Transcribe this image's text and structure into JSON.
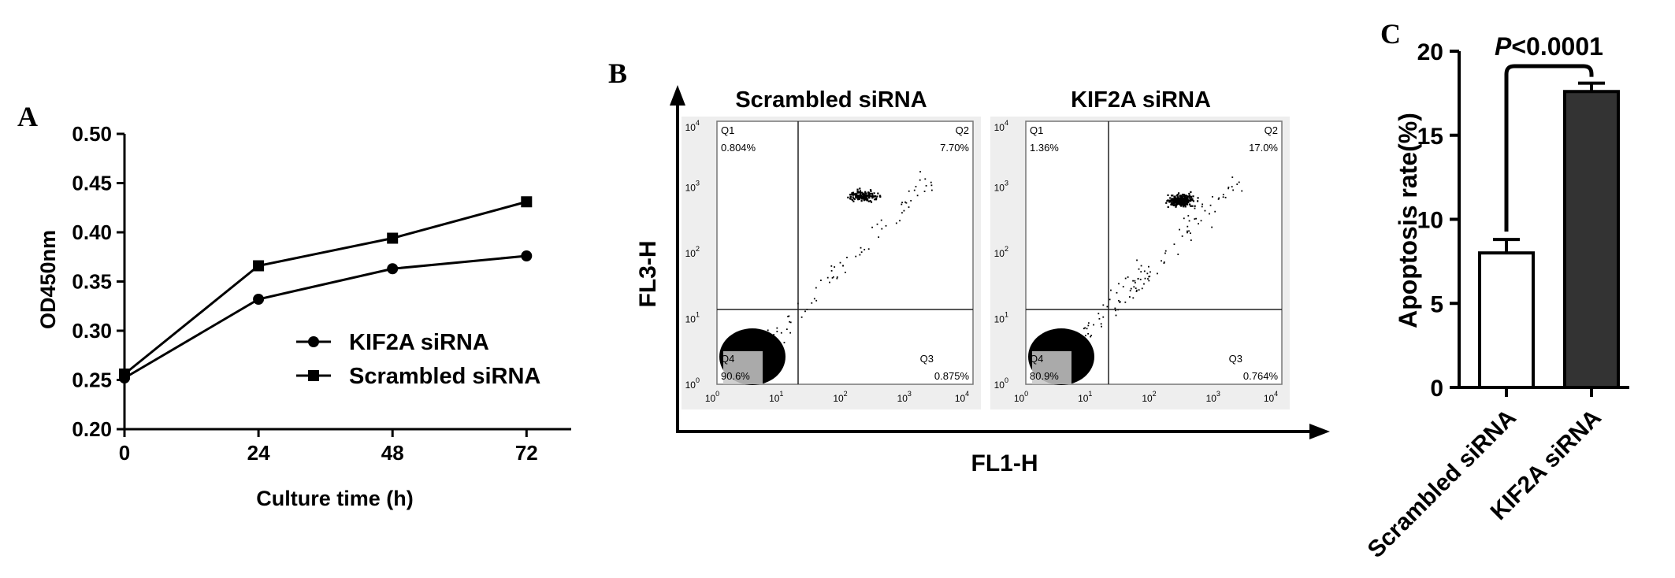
{
  "panels": {
    "a": "A",
    "b": "B",
    "c": "C"
  },
  "chart_data": [
    {
      "type": "line",
      "xlabel": "Culture time (h)",
      "ylabel": "OD450nm",
      "x": [
        0,
        24,
        48,
        72
      ],
      "x_ticks": [
        "0",
        "24",
        "48",
        "72"
      ],
      "y_ticks": [
        "0.20",
        "0.25",
        "0.30",
        "0.35",
        "0.40",
        "0.45",
        "0.50"
      ],
      "xlim": [
        0,
        80
      ],
      "ylim": [
        0.2,
        0.5
      ],
      "legend_position": "center-right",
      "series": [
        {
          "name": "KIF2A siRNA",
          "marker": "circle",
          "values": [
            0.252,
            0.332,
            0.363,
            0.376
          ]
        },
        {
          "name": "Scrambled siRNA",
          "marker": "square",
          "values": [
            0.256,
            0.366,
            0.394,
            0.431
          ]
        }
      ]
    },
    {
      "type": "scatter",
      "xlabel": "FL1-H",
      "ylabel": "FL3-H",
      "plots": [
        {
          "title": "Scrambled siRNA",
          "quadrants": {
            "q1": {
              "name": "Q1",
              "value": "0.804%"
            },
            "q2": {
              "name": "Q2",
              "value": "7.70%"
            },
            "q3": {
              "name": "Q3",
              "value": "0.875%"
            },
            "q4": {
              "name": "Q4",
              "value": "90.6%"
            }
          }
        },
        {
          "title": "KIF2A siRNA",
          "quadrants": {
            "q1": {
              "name": "Q1",
              "value": "1.36%"
            },
            "q2": {
              "name": "Q2",
              "value": "17.0%"
            },
            "q3": {
              "name": "Q3",
              "value": "0.764%"
            },
            "q4": {
              "name": "Q4",
              "value": "80.9%"
            }
          }
        }
      ],
      "log_ticks": [
        "10",
        "10",
        "10",
        "10",
        "10"
      ],
      "log_exponents": [
        "0",
        "1",
        "2",
        "3",
        "4"
      ]
    },
    {
      "type": "bar",
      "ylabel": "Apoptosis rate(%)",
      "categories": [
        "Scrambled siRNA",
        "KIF2A siRNA"
      ],
      "values": [
        8.0,
        17.6
      ],
      "errors": [
        0.8,
        0.5
      ],
      "colors": [
        "#ffffff",
        "#333333"
      ],
      "y_ticks": [
        "0",
        "5",
        "10",
        "15",
        "20"
      ],
      "ylim": [
        0,
        20
      ],
      "annotation": {
        "italic": "P",
        "text": "<0.0001"
      }
    }
  ]
}
